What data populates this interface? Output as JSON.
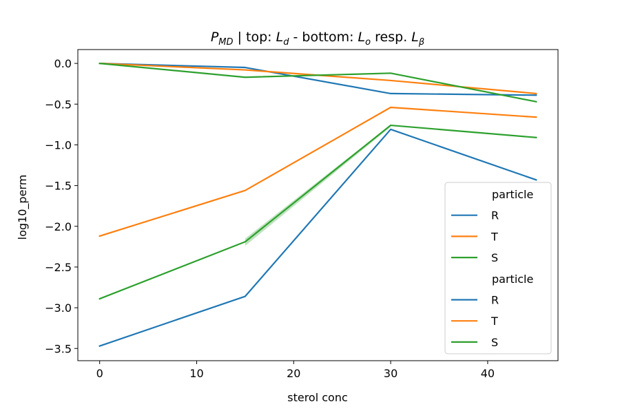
{
  "chart_data": {
    "type": "line",
    "title": {
      "prefix": "P",
      "prefix_sub": "MD",
      "part1": " | top: ",
      "ld": "L",
      "ld_sub": "d",
      "part2": " - bottom: ",
      "lo": "L",
      "lo_sub": "o",
      "part3": " resp. ",
      "lb": "L",
      "lb_sub": "β"
    },
    "xlabel": "sterol conc",
    "ylabel": "log10_perm",
    "xlim": [
      -2.25,
      47.25
    ],
    "ylim": [
      -3.65,
      0.17
    ],
    "xticks": [
      0,
      10,
      20,
      30,
      40
    ],
    "yticks": [
      0.0,
      -0.5,
      -1.0,
      -1.5,
      -2.0,
      -2.5,
      -3.0,
      -3.5
    ],
    "ytick_labels": [
      "0.0",
      "−0.5",
      "−1.0",
      "−1.5",
      "−2.0",
      "−2.5",
      "−3.0",
      "−3.5"
    ],
    "colors": {
      "R": "#1f77b4",
      "T": "#ff7f0e",
      "S": "#2ca02c"
    },
    "top_series": [
      {
        "particle": "R",
        "x": [
          0,
          15,
          30,
          45
        ],
        "y": [
          0.0,
          -0.05,
          -0.37,
          -0.39
        ]
      },
      {
        "particle": "T",
        "x": [
          0,
          15,
          30,
          45
        ],
        "y": [
          0.0,
          -0.08,
          -0.21,
          -0.37
        ]
      },
      {
        "particle": "S",
        "x": [
          0,
          15,
          30,
          45
        ],
        "y": [
          0.0,
          -0.17,
          -0.12,
          -0.47
        ]
      }
    ],
    "bottom_series": [
      {
        "particle": "R",
        "x": [
          0,
          15,
          30,
          45
        ],
        "y": [
          -3.47,
          -2.86,
          -0.81,
          -1.43
        ]
      },
      {
        "particle": "T",
        "x": [
          0,
          15,
          30,
          45
        ],
        "y": [
          -2.12,
          -1.56,
          -0.54,
          -0.66
        ]
      },
      {
        "particle": "S",
        "x": [
          0,
          15,
          30,
          45
        ],
        "y": [
          -2.89,
          -2.19,
          -0.76,
          -0.91
        ]
      }
    ],
    "confidence_band": {
      "particle": "S",
      "x": [
        15,
        30
      ],
      "lower": [
        -2.24,
        -0.78
      ],
      "upper": [
        -2.15,
        -0.75
      ]
    },
    "legend": {
      "placement": "lower-right",
      "groups": [
        {
          "title": "particle",
          "entries": [
            "R",
            "T",
            "S"
          ]
        },
        {
          "title": "particle",
          "entries": [
            "R",
            "T",
            "S"
          ]
        }
      ]
    }
  }
}
